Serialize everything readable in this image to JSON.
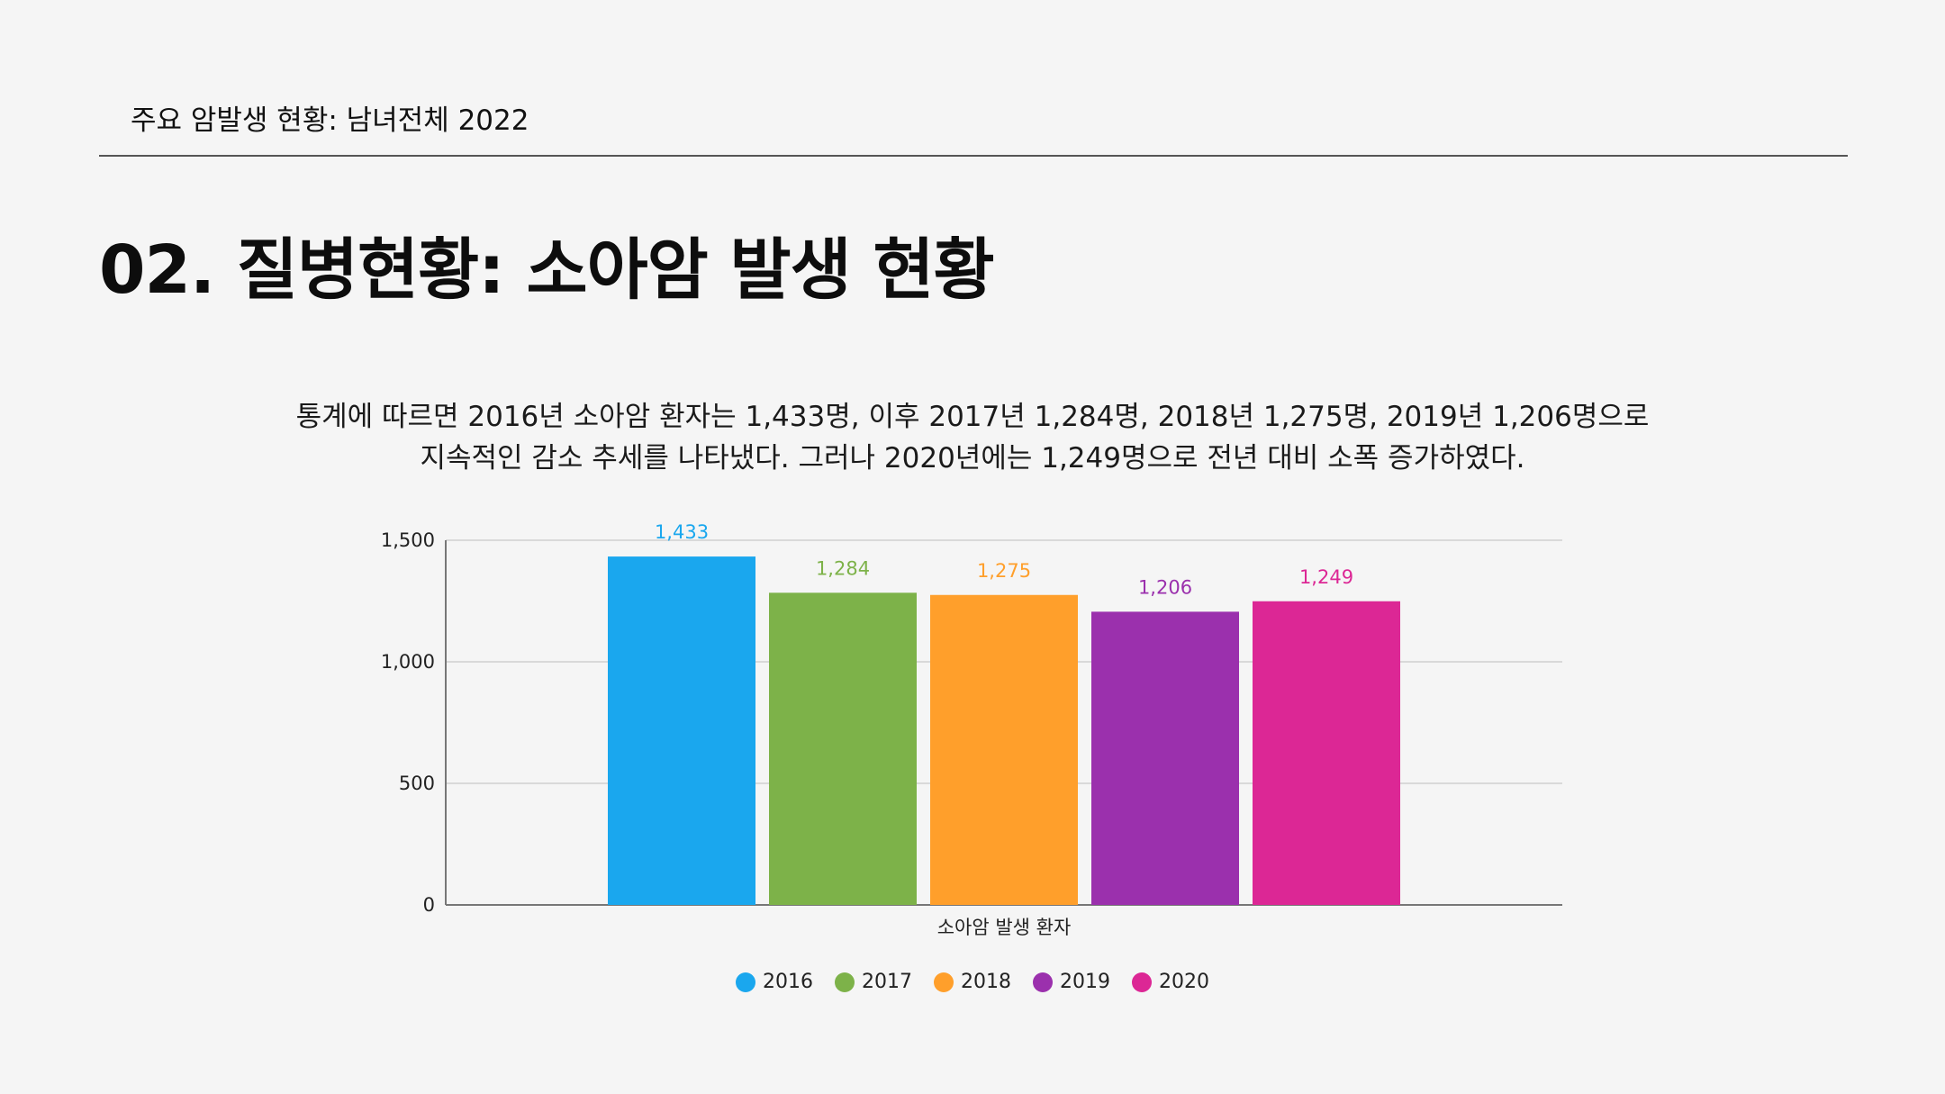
{
  "header": {
    "title": "주요 암발생 현황: 남녀전체 2022"
  },
  "page": {
    "heading": "02. 질병현황: 소아암 발생 현황",
    "description_line1": "통계에 따르면 2016년 소아암 환자는 1,433명, 이후 2017년 1,284명, 2018년 1,275명, 2019년 1,206명으로",
    "description_line2": "지속적인 감소 추세를 나타냈다. 그러나 2020년에는 1,249명으로 전년 대비 소폭 증가하였다."
  },
  "chart_data": {
    "type": "bar",
    "categories": [
      "소아암 발생 환자"
    ],
    "xlabel": "소아암 발생 환자",
    "ylabel": "",
    "ylim": [
      0,
      1500
    ],
    "yticks": [
      0,
      500,
      1000,
      1500
    ],
    "ytick_labels": [
      "0",
      "500",
      "1,000",
      "1,500"
    ],
    "grid": true,
    "legend_position": "bottom",
    "series": [
      {
        "name": "2016",
        "values": [
          1433
        ],
        "label": "1,433",
        "color": "#1aa7ee"
      },
      {
        "name": "2017",
        "values": [
          1284
        ],
        "label": "1,284",
        "color": "#7db249"
      },
      {
        "name": "2018",
        "values": [
          1275
        ],
        "label": "1,275",
        "color": "#ff9f2b"
      },
      {
        "name": "2019",
        "values": [
          1206
        ],
        "label": "1,206",
        "color": "#9b30ad"
      },
      {
        "name": "2020",
        "values": [
          1249
        ],
        "label": "1,249",
        "color": "#dc2795"
      }
    ]
  }
}
